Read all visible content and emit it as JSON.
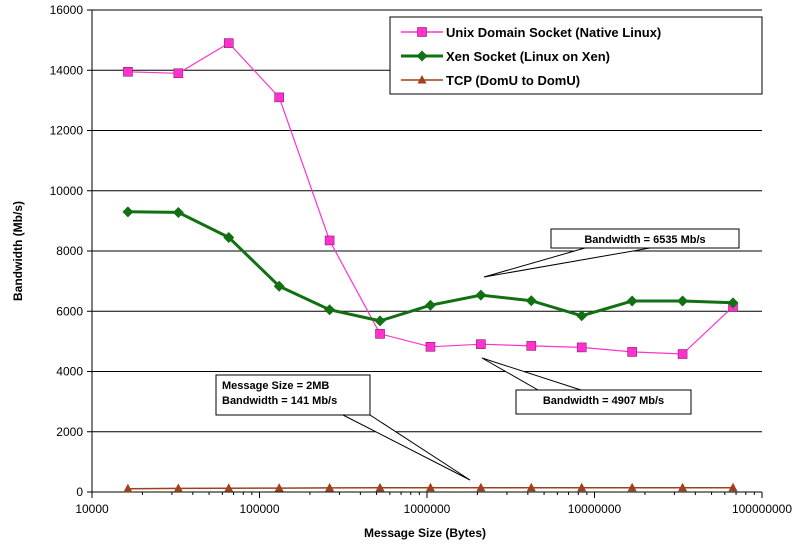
{
  "chart_data": {
    "type": "line",
    "xlabel": "Message Size (Bytes)",
    "ylabel": "Bandwidth (Mb/s)",
    "xscale": "log",
    "xlim": [
      10000,
      100000000
    ],
    "ylim": [
      0,
      16000
    ],
    "x_ticks": [
      "10000",
      "100000",
      "1000000",
      "10000000",
      "100000000"
    ],
    "y_ticks": [
      "0",
      "2000",
      "4000",
      "6000",
      "8000",
      "10000",
      "12000",
      "14000",
      "16000"
    ],
    "grid": "horizontal",
    "legend_position": "top-right",
    "x": [
      16384,
      32768,
      65536,
      131072,
      262144,
      524288,
      1048576,
      2097152,
      4194304,
      8388608,
      16777216,
      33554432,
      67108864
    ],
    "series": [
      {
        "name": "Unix Domain Socket (Native Linux)",
        "color": "#ff33cc",
        "marker": "square",
        "values": [
          13950,
          13900,
          14900,
          13100,
          8350,
          5250,
          4820,
          4907,
          4850,
          4800,
          4650,
          4580,
          6150
        ]
      },
      {
        "name": "Xen Socket (Linux on Xen)",
        "color": "#127012",
        "marker": "diamond",
        "values": [
          9300,
          9280,
          8450,
          6830,
          6050,
          5680,
          6200,
          6535,
          6350,
          5850,
          6340,
          6340,
          6280
        ]
      },
      {
        "name": "TCP (DomU to DomU)",
        "color": "#a0411d",
        "marker": "triangle",
        "values": [
          110,
          120,
          125,
          130,
          135,
          138,
          140,
          141,
          141,
          141,
          141,
          141,
          141
        ]
      }
    ],
    "annotations": [
      {
        "lines": [
          "Bandwidth = 6535 Mb/s"
        ]
      },
      {
        "lines": [
          "Bandwidth = 4907 Mb/s"
        ]
      },
      {
        "lines": [
          "Message Size = 2MB",
          "Bandwidth = 141 Mb/s"
        ]
      }
    ]
  }
}
